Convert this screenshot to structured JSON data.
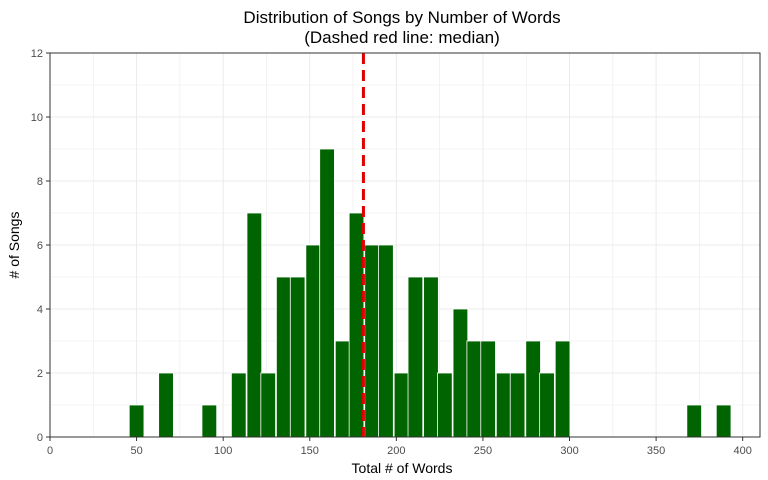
{
  "chart_data": {
    "type": "bar",
    "title": "Distribution of Songs by Number of Words",
    "subtitle": "(Dashed red line: median)",
    "xlabel": "Total # of Words",
    "ylabel": "# of Songs",
    "xlim": [
      0,
      410
    ],
    "ylim": [
      0,
      12
    ],
    "x_ticks": [
      0,
      50,
      100,
      150,
      200,
      250,
      300,
      350,
      400
    ],
    "y_ticks": [
      0,
      2,
      4,
      6,
      8,
      10,
      12
    ],
    "bin_width": 8.5,
    "bins": [
      {
        "x": 50,
        "count": 1
      },
      {
        "x": 67,
        "count": 2
      },
      {
        "x": 92,
        "count": 1
      },
      {
        "x": 109,
        "count": 2
      },
      {
        "x": 118,
        "count": 7
      },
      {
        "x": 126,
        "count": 2
      },
      {
        "x": 135,
        "count": 5
      },
      {
        "x": 143,
        "count": 5
      },
      {
        "x": 152,
        "count": 6
      },
      {
        "x": 160,
        "count": 9
      },
      {
        "x": 169,
        "count": 3
      },
      {
        "x": 177,
        "count": 7
      },
      {
        "x": 186,
        "count": 6
      },
      {
        "x": 194,
        "count": 6
      },
      {
        "x": 203,
        "count": 2
      },
      {
        "x": 211,
        "count": 5
      },
      {
        "x": 220,
        "count": 5
      },
      {
        "x": 228,
        "count": 2
      },
      {
        "x": 237,
        "count": 4
      },
      {
        "x": 245,
        "count": 3
      },
      {
        "x": 253,
        "count": 3
      },
      {
        "x": 262,
        "count": 2
      },
      {
        "x": 270,
        "count": 2
      },
      {
        "x": 279,
        "count": 3
      },
      {
        "x": 287,
        "count": 2
      },
      {
        "x": 296,
        "count": 3
      },
      {
        "x": 372,
        "count": 1
      },
      {
        "x": 389,
        "count": 1
      }
    ],
    "median": 181,
    "grid": true,
    "bar_color": "#006400",
    "median_line_color": "#e00000"
  }
}
